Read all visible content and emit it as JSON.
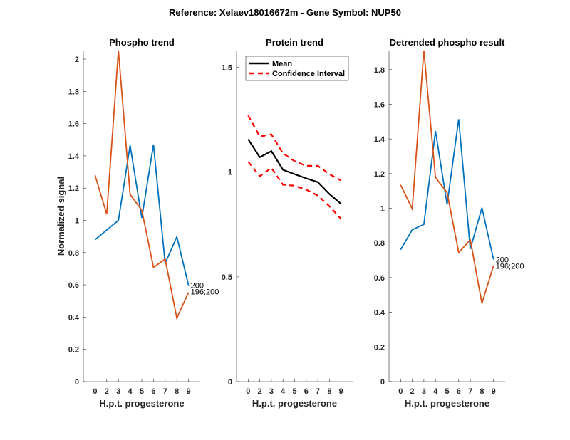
{
  "figure": {
    "suptitle": "Reference:  Xelaev18016672m - Gene Symbol:  NUP50"
  },
  "colors": {
    "blue": "#0072BD",
    "orange": "#D95319",
    "mean": "#000000",
    "ci": "#FF0000"
  },
  "chart_data": [
    {
      "type": "line",
      "title": "Phospho trend",
      "xlabel": "H.p.t. progesterone",
      "ylabel": "Normalized signal",
      "categories": [
        "0",
        "2",
        "3",
        "4",
        "5",
        "6",
        "7",
        "8",
        "9"
      ],
      "xlim": [
        0,
        10
      ],
      "ylim": [
        0,
        2.053
      ],
      "yticks": [
        0,
        0.2,
        0.4,
        0.6,
        0.8,
        1,
        1.2,
        1.4,
        1.6,
        1.8,
        2
      ],
      "ytick_labels": [
        "0",
        "0.2",
        "0.4",
        "0.6",
        "0.8",
        "1",
        "1.2",
        "1.4",
        "1.6",
        "1.8",
        "2"
      ],
      "grid": false,
      "series": [
        {
          "name": "200",
          "color": "#0072BD",
          "values": [
            0.88,
            0.94,
            1.0,
            1.465,
            1.015,
            1.47,
            0.733,
            0.898,
            0.598
          ],
          "end_label": "200"
        },
        {
          "name": "196;200",
          "color": "#D95319",
          "values": [
            1.28,
            1.038,
            2.053,
            1.161,
            1.063,
            0.708,
            0.76,
            0.394,
            0.553
          ],
          "end_label": "196;200"
        }
      ]
    },
    {
      "type": "line",
      "title": "Protein trend",
      "xlabel": "H.p.t. progesterone",
      "ylabel": "",
      "categories": [
        "0",
        "2",
        "3",
        "4",
        "5",
        "6",
        "7",
        "8",
        "9"
      ],
      "xlim": [
        0,
        10
      ],
      "ylim": [
        0,
        1.58
      ],
      "yticks": [
        0,
        0.5,
        1,
        1.5
      ],
      "ytick_labels": [
        "0",
        "0.5",
        "1",
        "1.5"
      ],
      "grid": false,
      "legend": {
        "placement": "top-left",
        "entries": [
          "Mean",
          "Confidence Interval"
        ]
      },
      "series": [
        {
          "name": "Mean",
          "color": "#000000",
          "style": "solid",
          "values": [
            1.157,
            1.071,
            1.1,
            1.011,
            0.99,
            0.97,
            0.952,
            0.895,
            0.848
          ]
        },
        {
          "name": "Confidence Interval (upper)",
          "color": "#FF0000",
          "style": "dashed",
          "values": [
            1.27,
            1.17,
            1.18,
            1.09,
            1.052,
            1.03,
            1.03,
            0.99,
            0.96
          ]
        },
        {
          "name": "Confidence Interval (lower)",
          "color": "#FF0000",
          "style": "dashed",
          "values": [
            1.05,
            0.98,
            1.02,
            0.94,
            0.935,
            0.916,
            0.888,
            0.837,
            0.776
          ]
        }
      ]
    },
    {
      "type": "line",
      "title": "Detrended phospho result",
      "xlabel": "H.p.t. progesterone",
      "ylabel": "",
      "categories": [
        "0",
        "2",
        "3",
        "4",
        "5",
        "6",
        "7",
        "8",
        "9"
      ],
      "xlim": [
        0,
        10
      ],
      "ylim": [
        0,
        1.91
      ],
      "yticks": [
        0,
        0.2,
        0.4,
        0.6,
        0.8,
        1,
        1.2,
        1.4,
        1.6,
        1.8
      ],
      "ytick_labels": [
        "0",
        "0.2",
        "0.4",
        "0.6",
        "0.8",
        "1",
        "1.2",
        "1.4",
        "1.6",
        "1.8"
      ],
      "grid": false,
      "series": [
        {
          "name": "200",
          "color": "#0072BD",
          "values": [
            0.761,
            0.876,
            0.907,
            1.446,
            1.022,
            1.514,
            0.765,
            1.003,
            0.705
          ],
          "end_label": "200"
        },
        {
          "name": "196;200",
          "color": "#D95319",
          "values": [
            1.135,
            0.997,
            1.91,
            1.178,
            1.09,
            0.745,
            0.818,
            0.451,
            0.67
          ],
          "end_label": "196;200"
        }
      ]
    }
  ]
}
